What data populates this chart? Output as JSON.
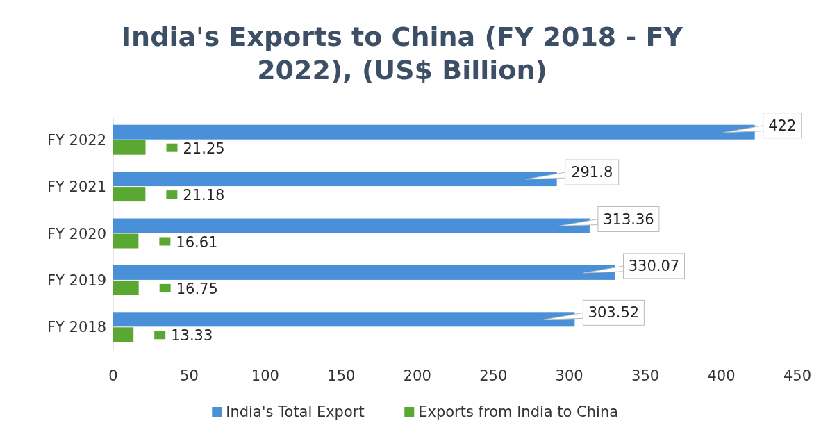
{
  "chart_data": {
    "type": "bar",
    "orientation": "horizontal",
    "title": "India's Exports to China (FY 2018 - FY 2022), (US$ Billion)",
    "categories": [
      "FY 2022",
      "FY 2021",
      "FY 2020",
      "FY 2019",
      "FY 2018"
    ],
    "series": [
      {
        "name": "India's Total Export",
        "color": "#4a90d9",
        "values": [
          422,
          291.8,
          313.36,
          330.07,
          303.52
        ]
      },
      {
        "name": "Exports from India to China",
        "color": "#5aa832",
        "values": [
          21.25,
          21.18,
          16.61,
          16.75,
          13.33
        ]
      }
    ],
    "xlim": [
      0,
      450
    ],
    "xticks": [
      0,
      50,
      100,
      150,
      200,
      250,
      300,
      350,
      400,
      450
    ],
    "grid": false,
    "legend": "bottom",
    "data_labels": true
  }
}
